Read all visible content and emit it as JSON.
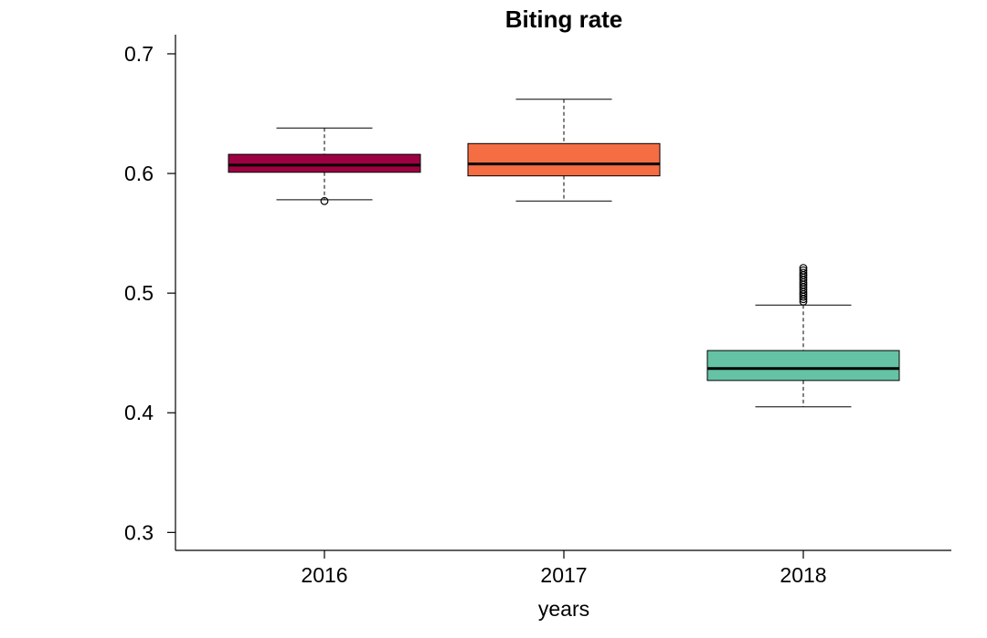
{
  "chart_data": {
    "type": "boxplot",
    "title": "Biting rate",
    "xlabel": "years",
    "ylabel": "",
    "ylim": [
      0.285,
      0.716
    ],
    "yticks": [
      0.3,
      0.4,
      0.5,
      0.6,
      0.7
    ],
    "ytick_labels": [
      "0.3",
      "0.4",
      "0.5",
      "0.6",
      "0.7"
    ],
    "grid": false,
    "categories": [
      "2016",
      "2017",
      "2018"
    ],
    "boxes": [
      {
        "category": "2016",
        "color": "#9E0142",
        "whisker_low": 0.578,
        "q1": 0.601,
        "median": 0.607,
        "q3": 0.616,
        "whisker_high": 0.638,
        "outliers": [
          0.577
        ]
      },
      {
        "category": "2017",
        "color": "#F46D43",
        "whisker_low": 0.577,
        "q1": 0.598,
        "median": 0.608,
        "q3": 0.625,
        "whisker_high": 0.662,
        "outliers": []
      },
      {
        "category": "2018",
        "color": "#66C2A5",
        "whisker_low": 0.405,
        "q1": 0.427,
        "median": 0.437,
        "q3": 0.452,
        "whisker_high": 0.49,
        "outliers": [
          0.493,
          0.495,
          0.497,
          0.499,
          0.501,
          0.503,
          0.505,
          0.507,
          0.509,
          0.511,
          0.513,
          0.515,
          0.517,
          0.519,
          0.521
        ]
      }
    ]
  }
}
